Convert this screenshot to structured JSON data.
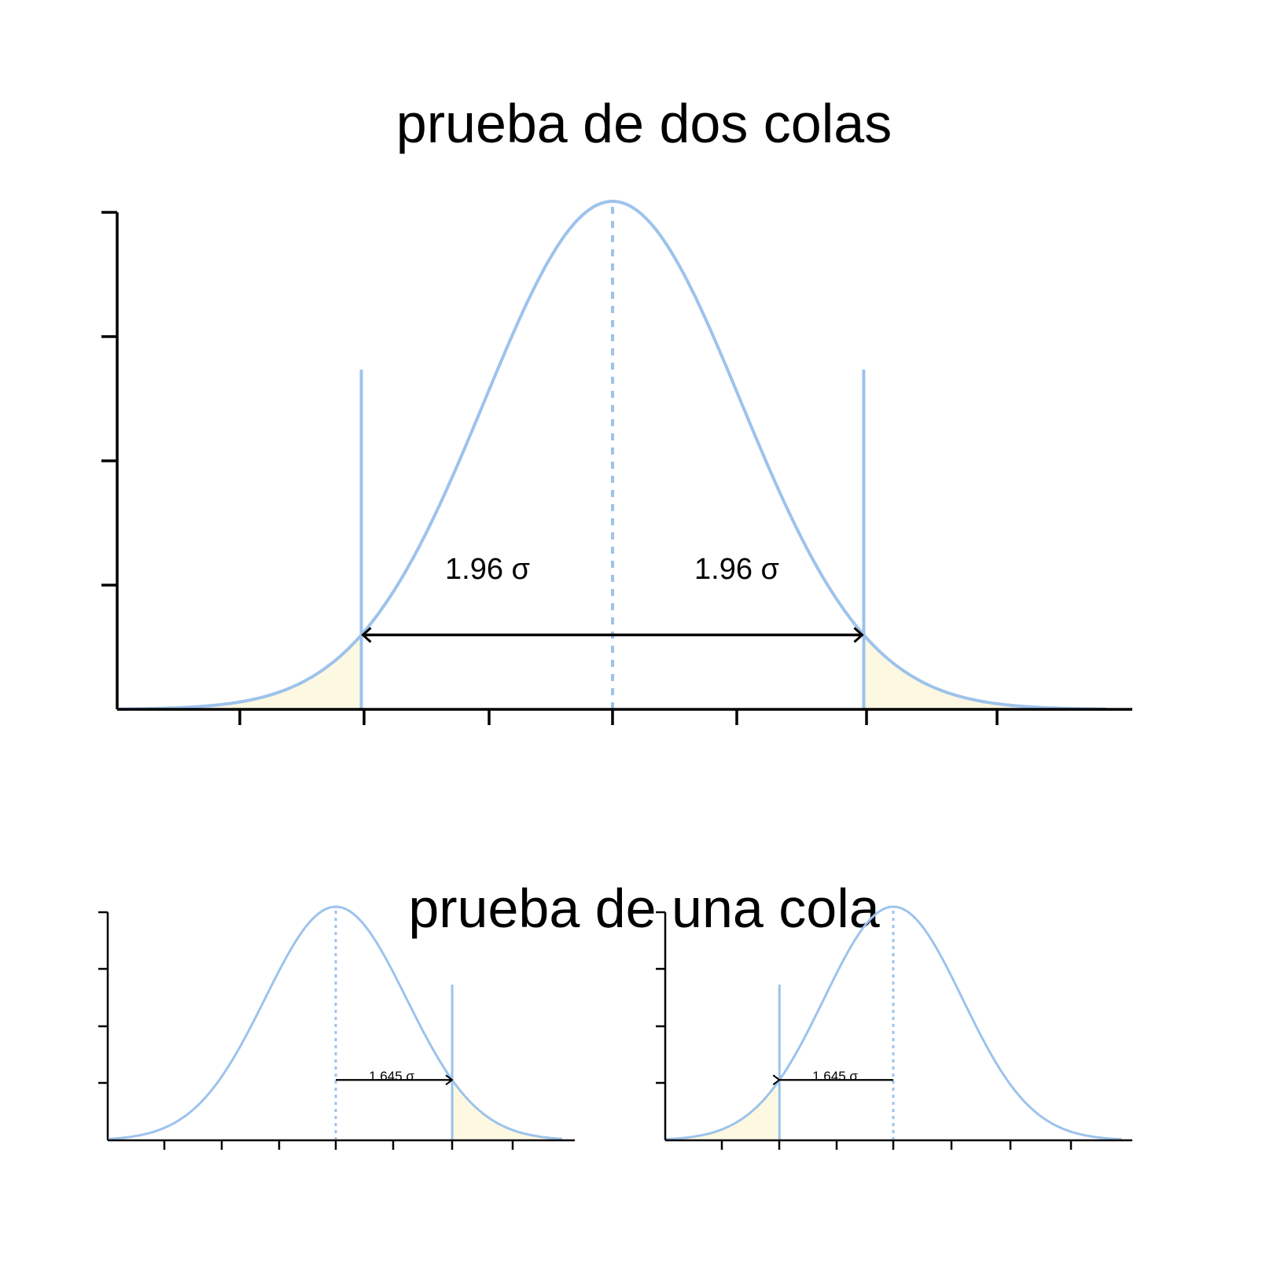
{
  "titles": {
    "two_tailed": "prueba de dos colas",
    "one_tailed": "prueba de una cola"
  },
  "colors": {
    "curve": "#9dc3ec",
    "tail_fill": "#fdf8e1",
    "axis": "#000000"
  },
  "panels": [
    {
      "id": "two-tailed",
      "critical_z": [
        -1.96,
        1.96
      ],
      "x_range": [
        -4,
        4
      ],
      "labels": [
        {
          "text": "1.96 σ"
        },
        {
          "text": "1.96 σ"
        }
      ]
    },
    {
      "id": "one-tailed-right",
      "critical_z": [
        1.645
      ],
      "x_range": [
        -4,
        4
      ],
      "labels": [
        {
          "text": "1.645 σ"
        }
      ]
    },
    {
      "id": "one-tailed-left",
      "critical_z": [
        -1.645
      ],
      "x_range": [
        -4,
        4
      ],
      "labels": [
        {
          "text": "1.645 σ"
        }
      ]
    }
  ]
}
